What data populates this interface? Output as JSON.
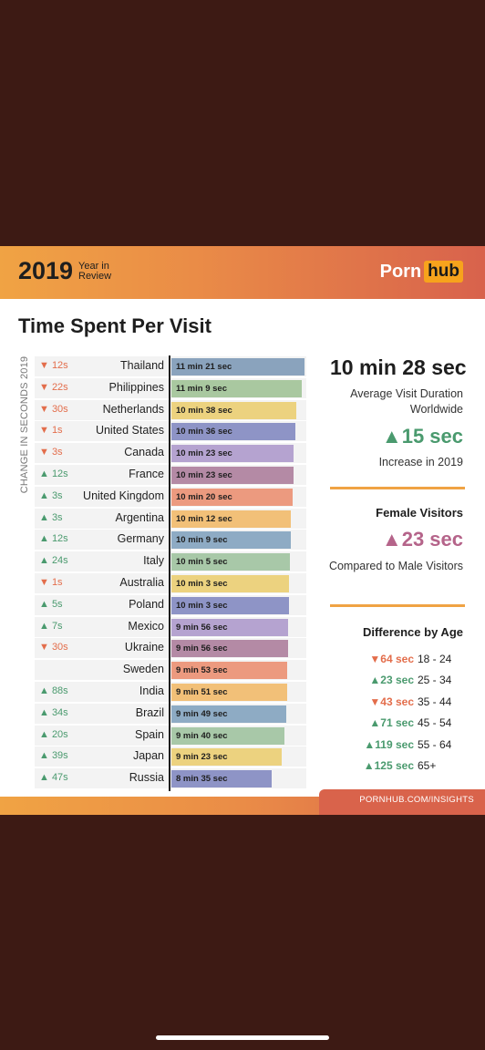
{
  "header": {
    "year": "2019",
    "year_in_review": "Year in Review",
    "logo_part1": "Porn",
    "logo_part2": "hub"
  },
  "title": "Time Spent Per Visit",
  "side_label": "CHANGE IN SECONDS 2019",
  "chart_data": {
    "type": "bar",
    "orientation": "horizontal",
    "title": "Time Spent Per Visit",
    "xlabel": "",
    "ylabel": "CHANGE IN SECONDS 2019",
    "categories": [
      "Thailand",
      "Philippines",
      "Netherlands",
      "United States",
      "Canada",
      "France",
      "United Kingdom",
      "Argentina",
      "Germany",
      "Italy",
      "Australia",
      "Poland",
      "Mexico",
      "Ukraine",
      "Sweden",
      "India",
      "Brazil",
      "Spain",
      "Japan",
      "Russia"
    ],
    "values_seconds": [
      681,
      669,
      638,
      636,
      623,
      623,
      620,
      612,
      609,
      605,
      603,
      603,
      596,
      596,
      593,
      591,
      589,
      580,
      563,
      515
    ],
    "value_labels": [
      "11 min 21 sec",
      "11 min 9 sec",
      "10 min 38 sec",
      "10 min 36 sec",
      "10 min 23 sec",
      "10 min 23 sec",
      "10 min 20 sec",
      "10 min 12 sec",
      "10 min 9 sec",
      "10 min 5 sec",
      "10 min 3 sec",
      "10 min 3 sec",
      "9 min 56 sec",
      "9 min 56 sec",
      "9 min 53 sec",
      "9 min 51 sec",
      "9 min 49 sec",
      "9 min 40 sec",
      "9 min 23 sec",
      "8 min 35 sec"
    ],
    "change_labels": [
      "12s",
      "22s",
      "30s",
      "1s",
      "3s",
      "12s",
      "3s",
      "3s",
      "12s",
      "24s",
      "1s",
      "5s",
      "7s",
      "30s",
      "",
      "88s",
      "34s",
      "20s",
      "39s",
      "47s"
    ],
    "change_direction": [
      "down",
      "down",
      "down",
      "down",
      "down",
      "up",
      "up",
      "up",
      "up",
      "up",
      "down",
      "up",
      "up",
      "down",
      "",
      "up",
      "up",
      "up",
      "up",
      "up"
    ],
    "bar_colors": [
      "#8aa3bd",
      "#a9c8a0",
      "#ecd27f",
      "#8e94c6",
      "#b5a3d0",
      "#b48aa5",
      "#ec9a7f",
      "#f2c078",
      "#8eabc4",
      "#a8c8a8",
      "#ecd27f",
      "#8e94c6",
      "#b5a3d0",
      "#b48aa5",
      "#ec9a7f",
      "#f2c078",
      "#8eabc4",
      "#a8c8a8",
      "#ecd27f",
      "#8e94c6"
    ],
    "xlim": [
      0,
      690
    ]
  },
  "summary": {
    "avg_value": "10 min 28 sec",
    "avg_label": "Average Visit Duration Worldwide",
    "increase_value": "15 sec",
    "increase_label": "Increase in 2019",
    "female_title": "Female Visitors",
    "female_value": "23 sec",
    "female_label": "Compared to Male Visitors",
    "age_title": "Difference by Age",
    "age_rows": [
      {
        "value": "64 sec",
        "direction": "down",
        "range": "18 - 24"
      },
      {
        "value": "23 sec",
        "direction": "up",
        "range": "25 - 34"
      },
      {
        "value": "43 sec",
        "direction": "down",
        "range": "35 - 44"
      },
      {
        "value": "71 sec",
        "direction": "up",
        "range": "45 - 54"
      },
      {
        "value": "119 sec",
        "direction": "up",
        "range": "55 - 64"
      },
      {
        "value": "125 sec",
        "direction": "up",
        "range": "65+"
      }
    ]
  },
  "footer": {
    "text": "PORNHUB.COM/INSIGHTS"
  },
  "colors": {
    "up": "#4a9a6e",
    "down": "#e36d4b",
    "female": "#b5648a",
    "accent": "#f0a344"
  }
}
